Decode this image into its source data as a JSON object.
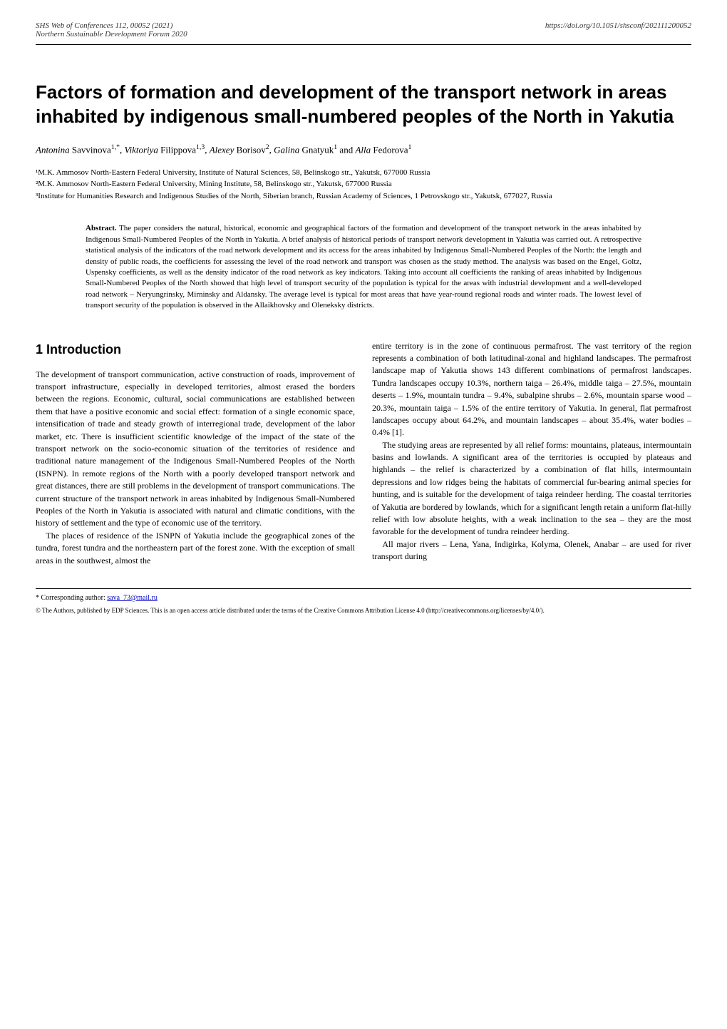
{
  "header": {
    "journal_ref": "SHS Web of Conferences 112, 00052 (2021)",
    "conference_name": "Northern Sustainable Development Forum 2020",
    "doi": "https://doi.org/10.1051/shsconf/202111200052"
  },
  "title": "Factors of formation and development of the transport network in areas inhabited by indigenous small-numbered peoples of the North in Yakutia",
  "authors_html": "<i>Antonina</i> Savvinova<sup>1,*</sup>, <i>Viktoriya</i> Filippova<sup>1,3</sup>, <i>Alexey</i> Borisov<sup>2</sup>, <i>Galina</i> Gnatyuk<sup>1</sup> and <i>Alla</i> Fedorova<sup>1</sup>",
  "affiliations": [
    "¹M.K. Ammosov North-Eastern Federal University, Institute of Natural Sciences, 58, Belinskogo str., Yakutsk, 677000 Russia",
    "²M.K. Ammosov North-Eastern Federal University, Mining Institute, 58, Belinskogo str., Yakutsk, 677000 Russia",
    "³Institute for Humanities Research and Indigenous Studies of the North, Siberian branch, Russian Academy of Sciences, 1 Petrovskogo str., Yakutsk, 677027, Russia"
  ],
  "abstract": {
    "label": "Abstract.",
    "text": "The paper considers the natural, historical, economic and geographical factors of the formation and development of the transport network in the areas inhabited by Indigenous Small-Numbered Peoples of the North in Yakutia. A brief analysis of historical periods of transport network development in Yakutia was carried out. A retrospective statistical analysis of the indicators of the road network development and its access for the areas inhabited by Indigenous Small-Numbered Peoples of the North: the length and density of public roads, the coefficients for assessing the level of the road network and transport was chosen as the study method. The analysis was based on the Engel, Goltz, Uspensky coefficients, as well as the density indicator of the road network as key indicators. Taking into account all coefficients the ranking of areas inhabited by Indigenous Small-Numbered Peoples of the North showed that high level of transport security of the population is typical for the areas with industrial development and a well-developed road network – Neryungrinsky, Mirninsky and Aldansky. The average level is typical for most areas that have year-round regional roads and winter roads. The lowest level of transport security of the population is observed in the Allaikhovsky and Oleneksky districts."
  },
  "section1": {
    "heading": "1 Introduction",
    "left_paragraphs": [
      "The development of transport communication, active construction of roads, improvement of transport infrastructure, especially in developed territories, almost erased the borders between the regions. Economic, cultural, social communications are established between them that have a positive economic and social effect: formation of a single economic space, intensification of trade and steady growth of interregional trade, development of the labor market, etc. There is insufficient scientific knowledge of the impact of the state of the transport network on the socio-economic situation of the territories of residence and traditional nature management of the Indigenous Small-Numbered Peoples of the North (ISNPN). In remote regions of the North with a poorly developed transport network and great distances, there are still problems in the development of transport communications. The current structure of the transport network in areas inhabited by Indigenous Small-Numbered Peoples of the North in Yakutia is associated with natural and climatic conditions, with the history of settlement and the type of economic use of the territory.",
      "The places of residence of the ISNPN of Yakutia include the geographical zones of the tundra, forest tundra and the northeastern part of the forest zone. With the exception of small areas in the southwest, almost the"
    ],
    "right_paragraphs": [
      "entire territory is in the zone of continuous permafrost. The vast territory of the region represents a combination of both latitudinal-zonal and highland landscapes. The permafrost landscape map of Yakutia shows 143 different combinations of permafrost landscapes. Tundra landscapes occupy 10.3%, northern taiga – 26.4%, middle taiga – 27.5%, mountain deserts – 1.9%, mountain tundra – 9.4%, subalpine shrubs – 2.6%, mountain sparse wood – 20.3%, mountain taiga – 1.5% of the entire territory of Yakutia. In general, flat permafrost landscapes occupy about 64.2%, and mountain landscapes – about 35.4%, water bodies – 0.4% [1].",
      "The studying areas are represented by all relief forms: mountains, plateaus, intermountain basins and lowlands. A significant area of the territories is occupied by plateaus and highlands – the relief is characterized by a combination of flat hills, intermountain depressions and low ridges being the habitats of commercial fur-bearing animal species for hunting, and is suitable for the development of taiga reindeer herding. The coastal territories of Yakutia are bordered by lowlands, which for a significant length retain a uniform flat-hilly relief with low absolute heights, with a weak inclination to the sea – they are the most favorable for the development of tundra reindeer herding.",
      "All major rivers – Lena, Yana, Indigirka, Kolyma, Olenek, Anabar – are used for river transport during"
    ]
  },
  "footer": {
    "corresponding_label": "* Corresponding author: ",
    "corresponding_email": "sava_73@mail.ru",
    "license": "© The Authors, published by EDP Sciences. This is an open access article distributed under the terms of the Creative Commons Attribution License 4.0 (http://creativecommons.org/licenses/by/4.0/)."
  }
}
